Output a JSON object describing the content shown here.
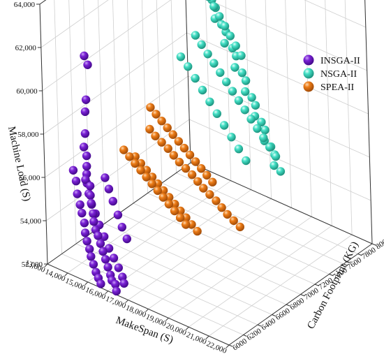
{
  "chart_data": {
    "type": "scatter3d",
    "xlabel": "MakeSpan (S)",
    "ylabel": "Carbon Footprint (KG)",
    "zlabel": "Machine Load (S)",
    "xlim": [
      13000,
      22000
    ],
    "ylim": [
      6000,
      8000
    ],
    "zlim": [
      52000,
      65000
    ],
    "x_ticks": [
      "13,000",
      "14,000",
      "15,000",
      "16,000",
      "17,000",
      "18,000",
      "19,000",
      "20,000",
      "21,000",
      "22,000"
    ],
    "y_ticks": [
      "6000",
      "6200",
      "6400",
      "6600",
      "6800",
      "7000",
      "7200",
      "7400",
      "7600",
      "7800",
      "8000"
    ],
    "z_ticks": [
      "52,000",
      "54,000",
      "56,000",
      "58,000",
      "60,000",
      "62,000",
      "64,000"
    ],
    "legend_position": "top-right",
    "series": [
      {
        "name": "INSGA-II",
        "color": "#6a0dc9",
        "points": [
          [
            13500,
            6450,
            61500
          ],
          [
            13550,
            6480,
            61000
          ],
          [
            13600,
            6430,
            59400
          ],
          [
            13650,
            6400,
            58900
          ],
          [
            13800,
            6350,
            58000
          ],
          [
            13900,
            6300,
            57500
          ],
          [
            14100,
            6280,
            57200
          ],
          [
            14200,
            6250,
            56800
          ],
          [
            14300,
            6200,
            56300
          ],
          [
            14450,
            6220,
            56000
          ],
          [
            14600,
            6180,
            55700
          ],
          [
            14700,
            6160,
            55400
          ],
          [
            14850,
            6140,
            55000
          ],
          [
            14950,
            6120,
            54700
          ],
          [
            15100,
            6100,
            54400
          ],
          [
            15250,
            6090,
            54200
          ],
          [
            15400,
            6080,
            53900
          ],
          [
            15550,
            6070,
            53600
          ],
          [
            15700,
            6060,
            53300
          ],
          [
            15850,
            6050,
            53000
          ],
          [
            16000,
            6040,
            52700
          ],
          [
            16100,
            6030,
            52500
          ],
          [
            16200,
            6050,
            52300
          ],
          [
            16350,
            6020,
            52100
          ],
          [
            13700,
            6200,
            56500
          ],
          [
            13900,
            6180,
            56100
          ],
          [
            14050,
            6150,
            55600
          ],
          [
            14250,
            6130,
            55200
          ],
          [
            14400,
            6110,
            54900
          ],
          [
            14550,
            6100,
            54500
          ],
          [
            14650,
            6080,
            54100
          ],
          [
            14800,
            6060,
            53800
          ],
          [
            14950,
            6050,
            53500
          ],
          [
            15050,
            6040,
            53200
          ],
          [
            15200,
            6030,
            52900
          ],
          [
            15350,
            6020,
            52600
          ],
          [
            15500,
            6010,
            52400
          ],
          [
            15650,
            6000,
            52200
          ],
          [
            14000,
            6300,
            56200
          ],
          [
            14150,
            6260,
            55900
          ],
          [
            14300,
            6240,
            55500
          ],
          [
            14500,
            6220,
            55100
          ],
          [
            14750,
            6200,
            54800
          ],
          [
            15000,
            6180,
            54400
          ],
          [
            15300,
            6160,
            54000
          ],
          [
            15600,
            6140,
            53600
          ],
          [
            15900,
            6120,
            53300
          ],
          [
            16200,
            6100,
            53000
          ],
          [
            16450,
            6080,
            52700
          ],
          [
            16600,
            6060,
            52500
          ],
          [
            14550,
            6400,
            56000
          ],
          [
            14800,
            6380,
            55600
          ],
          [
            15100,
            6350,
            55200
          ],
          [
            15400,
            6330,
            54700
          ],
          [
            15700,
            6300,
            54300
          ],
          [
            16000,
            6280,
            53900
          ]
        ]
      },
      {
        "name": "NSGA-II",
        "color": "#3fe0c5",
        "points": [
          [
            15200,
            7500,
            65000
          ],
          [
            15300,
            7520,
            64600
          ],
          [
            15400,
            7480,
            64200
          ],
          [
            15550,
            7540,
            63700
          ],
          [
            15650,
            7560,
            63300
          ],
          [
            15750,
            7500,
            62900
          ],
          [
            15850,
            7580,
            62500
          ],
          [
            15950,
            7600,
            62100
          ],
          [
            16050,
            7560,
            61700
          ],
          [
            16150,
            7620,
            61300
          ],
          [
            16250,
            7650,
            60900
          ],
          [
            16350,
            7600,
            60500
          ],
          [
            16450,
            7680,
            60100
          ],
          [
            16550,
            7700,
            59700
          ],
          [
            16650,
            7650,
            59300
          ],
          [
            16750,
            7720,
            58900
          ],
          [
            16850,
            7740,
            58500
          ],
          [
            16950,
            7700,
            58100
          ],
          [
            17050,
            7760,
            57700
          ],
          [
            17150,
            7780,
            57300
          ],
          [
            17250,
            7740,
            56900
          ],
          [
            17350,
            7800,
            56500
          ],
          [
            17450,
            7820,
            56100
          ],
          [
            17550,
            7780,
            55700
          ],
          [
            17650,
            7840,
            55300
          ],
          [
            17750,
            7860,
            54900
          ],
          [
            17850,
            7820,
            54500
          ],
          [
            17950,
            7880,
            54100
          ],
          [
            16000,
            7300,
            61500
          ],
          [
            16150,
            7340,
            61000
          ],
          [
            16300,
            7380,
            60500
          ],
          [
            16450,
            7420,
            60000
          ],
          [
            16600,
            7460,
            59500
          ],
          [
            16750,
            7500,
            59000
          ],
          [
            16900,
            7540,
            58500
          ],
          [
            17050,
            7580,
            58000
          ],
          [
            17200,
            7620,
            57500
          ],
          [
            17350,
            7660,
            57000
          ],
          [
            17500,
            7700,
            56500
          ],
          [
            17650,
            7740,
            56000
          ],
          [
            17800,
            7780,
            55500
          ],
          [
            17950,
            7820,
            55000
          ],
          [
            15600,
            7200,
            60500
          ],
          [
            15800,
            7240,
            60000
          ],
          [
            16000,
            7280,
            59400
          ],
          [
            16200,
            7320,
            58800
          ],
          [
            16400,
            7360,
            58200
          ],
          [
            16600,
            7400,
            57600
          ],
          [
            16800,
            7440,
            57000
          ],
          [
            17000,
            7480,
            56400
          ],
          [
            17200,
            7520,
            55800
          ],
          [
            17400,
            7560,
            55200
          ],
          [
            15900,
            7450,
            63500
          ],
          [
            16050,
            7480,
            63000
          ],
          [
            16200,
            7510,
            62500
          ],
          [
            16350,
            7540,
            62000
          ],
          [
            16500,
            7570,
            61500
          ],
          [
            16650,
            7600,
            61000
          ],
          [
            16800,
            7630,
            60500
          ],
          [
            16950,
            7660,
            60000
          ]
        ]
      },
      {
        "name": "SPEA-II",
        "color": "#e8720c",
        "points": [
          [
            15400,
            6800,
            57800
          ],
          [
            15600,
            6820,
            57500
          ],
          [
            15800,
            6850,
            57200
          ],
          [
            16000,
            6880,
            56900
          ],
          [
            16200,
            6900,
            56600
          ],
          [
            16400,
            6920,
            56300
          ],
          [
            16600,
            6950,
            56000
          ],
          [
            16800,
            6980,
            55700
          ],
          [
            17000,
            7000,
            55400
          ],
          [
            17200,
            7020,
            55100
          ],
          [
            17400,
            7050,
            54800
          ],
          [
            17600,
            7080,
            54500
          ],
          [
            17800,
            7100,
            54200
          ],
          [
            18000,
            7120,
            53900
          ],
          [
            18200,
            7150,
            53600
          ],
          [
            18400,
            7180,
            53300
          ],
          [
            15000,
            6700,
            56500
          ],
          [
            15200,
            6720,
            56200
          ],
          [
            15400,
            6740,
            55900
          ],
          [
            15600,
            6760,
            55600
          ],
          [
            15800,
            6780,
            55300
          ],
          [
            16000,
            6800,
            55000
          ],
          [
            16200,
            6820,
            54700
          ],
          [
            16400,
            6840,
            54400
          ],
          [
            16600,
            6860,
            54100
          ],
          [
            16800,
            6880,
            53800
          ],
          [
            17000,
            6900,
            53500
          ],
          [
            17200,
            6920,
            53200
          ],
          [
            15100,
            6900,
            58500
          ],
          [
            15300,
            6920,
            58200
          ],
          [
            15500,
            6940,
            57900
          ],
          [
            15700,
            6960,
            57600
          ],
          [
            15900,
            6980,
            57300
          ],
          [
            16100,
            7000,
            57000
          ],
          [
            16300,
            7020,
            56700
          ],
          [
            16500,
            7040,
            56400
          ],
          [
            16700,
            7060,
            56100
          ],
          [
            16900,
            7080,
            55800
          ],
          [
            17100,
            7100,
            55500
          ],
          [
            17300,
            7120,
            55200
          ],
          [
            14800,
            6600,
            57000
          ],
          [
            15000,
            6620,
            56700
          ],
          [
            15200,
            6640,
            56400
          ],
          [
            15400,
            6660,
            56100
          ],
          [
            15600,
            6680,
            55800
          ],
          [
            15800,
            6700,
            55500
          ],
          [
            16000,
            6720,
            55200
          ],
          [
            16200,
            6740,
            54900
          ],
          [
            16400,
            6760,
            54600
          ],
          [
            16600,
            6780,
            54300
          ],
          [
            16800,
            6800,
            54000
          ],
          [
            17000,
            6820,
            53700
          ]
        ]
      }
    ]
  }
}
